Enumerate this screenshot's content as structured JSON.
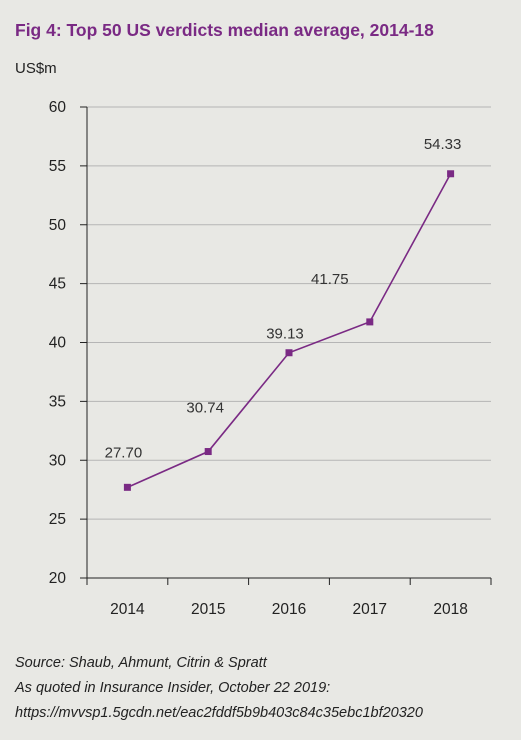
{
  "chart_data": {
    "type": "line",
    "title": "Fig 4: Top 50 US verdicts median average, 2014-18",
    "ylabel": "US$m",
    "xlabel": "",
    "categories": [
      "2014",
      "2015",
      "2016",
      "2017",
      "2018"
    ],
    "series": [
      {
        "values": [
          27.7,
          30.74,
          39.13,
          41.75,
          54.33
        ]
      }
    ],
    "value_labels": [
      "27.70",
      "30.74",
      "39.13",
      "41.75",
      "54.33"
    ],
    "ylim": [
      20,
      60
    ],
    "yticks": [
      "20",
      "25",
      "30",
      "35",
      "40",
      "45",
      "50",
      "55",
      "60"
    ],
    "grid": true,
    "line_color": "#7a2a84",
    "grid_color": "#b5b5b5"
  },
  "source": {
    "line1": "Source: Shaub, Ahmunt, Citrin & Spratt",
    "line2": "As quoted in Insurance Insider, October 22 2019:",
    "line3": "https://mvvsp1.5gcdn.net/eac2fddf5b9b403c84c35ebc1bf20320"
  }
}
